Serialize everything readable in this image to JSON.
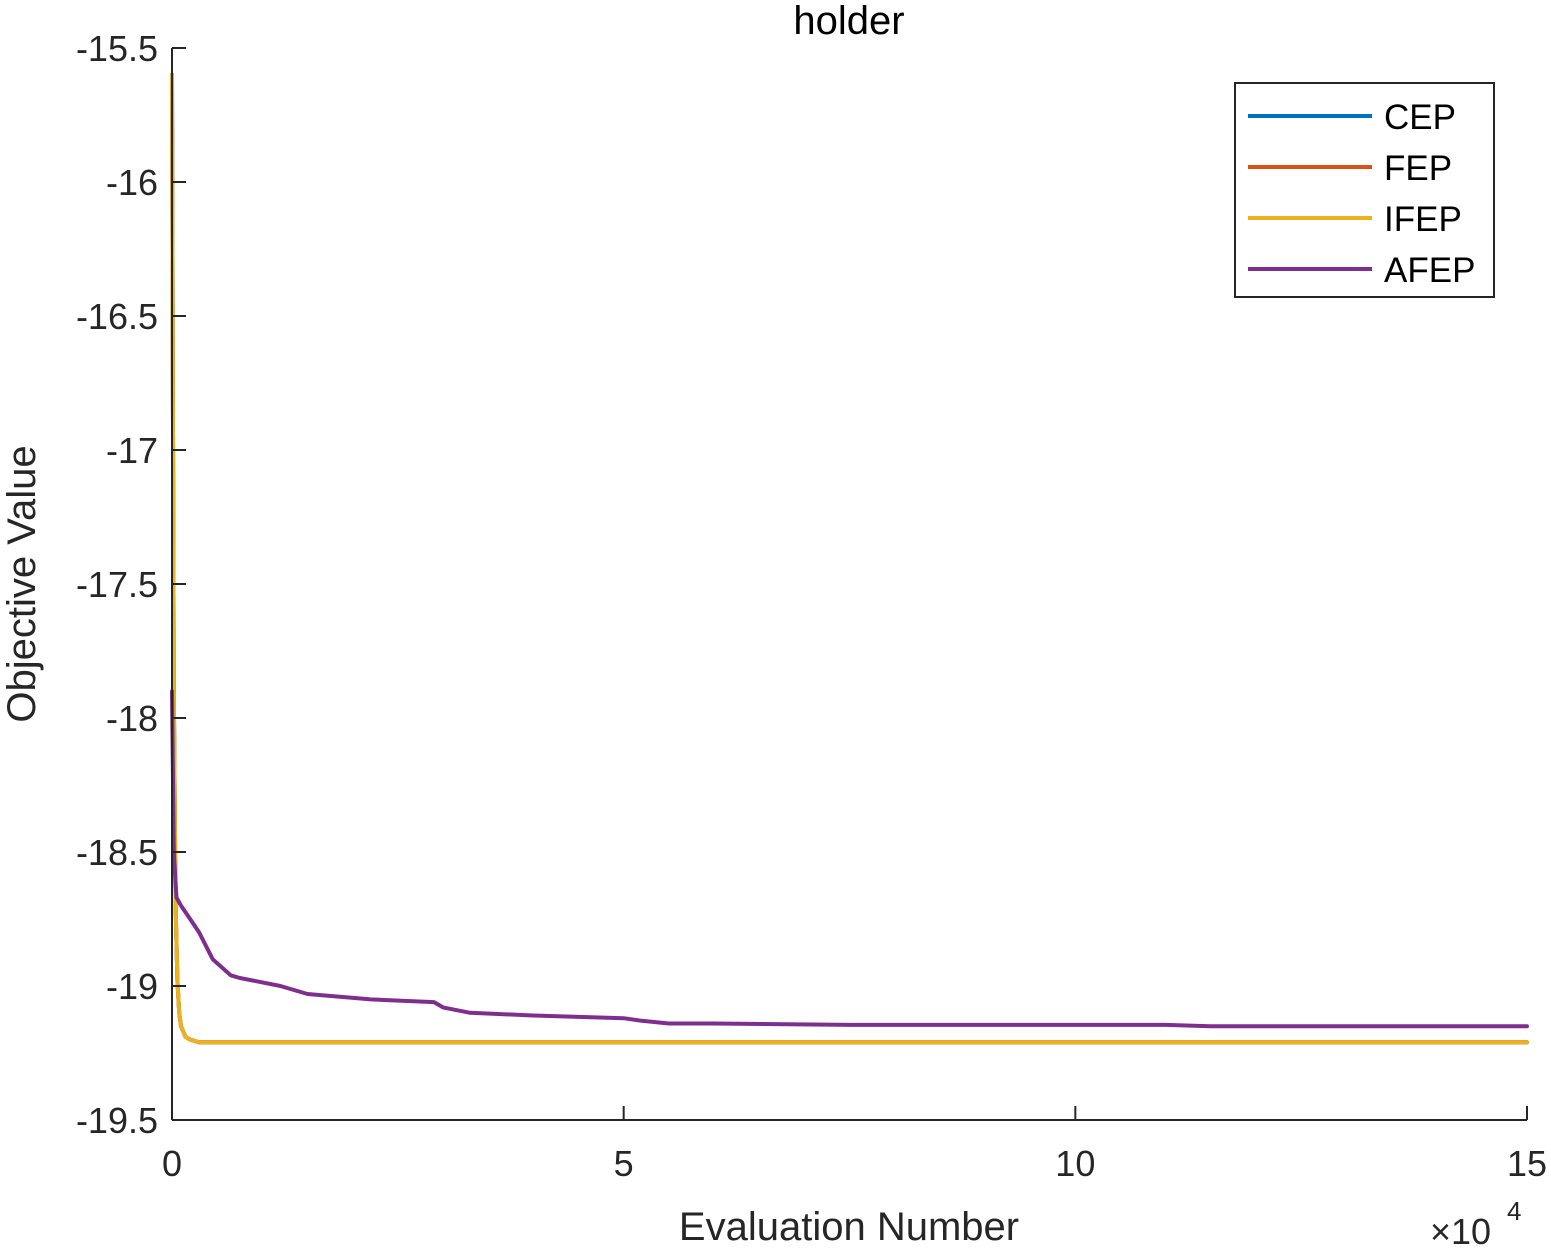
{
  "chart_data": {
    "type": "line",
    "title": "holder",
    "xlabel": "Evaluation Number",
    "ylabel": "Objective Value",
    "x_multiplier_base": "×10",
    "x_multiplier_exp": "4",
    "xlim": [
      0,
      15
    ],
    "ylim": [
      -19.5,
      -15.5
    ],
    "xticks": [
      0,
      5,
      10,
      15
    ],
    "xtick_labels": [
      "0",
      "5",
      "10",
      "15"
    ],
    "yticks": [
      -15.5,
      -16,
      -16.5,
      -17,
      -17.5,
      -18,
      -18.5,
      -19,
      -19.5
    ],
    "ytick_labels": [
      "-15.5",
      "-16",
      "-16.5",
      "-17",
      "-17.5",
      "-18",
      "-18.5",
      "-19",
      "-19.5"
    ],
    "grid": false,
    "legend_position": "top-right",
    "series": [
      {
        "name": "CEP",
        "color": "#0072BD",
        "x": [
          0,
          0.01,
          0.02,
          0.04,
          0.06,
          0.08,
          0.1,
          0.15,
          0.2,
          0.3,
          0.5,
          1,
          2,
          5,
          10,
          15
        ],
        "y": [
          -15.6,
          -16.8,
          -17.9,
          -18.7,
          -18.98,
          -19.1,
          -19.15,
          -19.19,
          -19.2,
          -19.21,
          -19.21,
          -19.21,
          -19.21,
          -19.21,
          -19.21,
          -19.21
        ]
      },
      {
        "name": "FEP",
        "color": "#D95319",
        "x": [
          0,
          0.01,
          0.02,
          0.04,
          0.06,
          0.08,
          0.1,
          0.15,
          0.2,
          0.3,
          0.5,
          1,
          2,
          5,
          10,
          15
        ],
        "y": [
          -15.6,
          -16.8,
          -17.9,
          -18.7,
          -18.98,
          -19.1,
          -19.15,
          -19.19,
          -19.2,
          -19.21,
          -19.21,
          -19.21,
          -19.21,
          -19.21,
          -19.21,
          -19.21
        ]
      },
      {
        "name": "IFEP",
        "color": "#EDB120",
        "x": [
          0,
          0.01,
          0.02,
          0.04,
          0.06,
          0.08,
          0.1,
          0.15,
          0.2,
          0.3,
          0.5,
          1,
          2,
          5,
          10,
          15
        ],
        "y": [
          -15.6,
          -16.8,
          -17.9,
          -18.7,
          -18.98,
          -19.1,
          -19.15,
          -19.19,
          -19.2,
          -19.21,
          -19.21,
          -19.21,
          -19.21,
          -19.21,
          -19.21,
          -19.21
        ]
      },
      {
        "name": "AFEP",
        "color": "#7E2F8E",
        "x": [
          0,
          0.02,
          0.05,
          0.1,
          0.2,
          0.3,
          0.45,
          0.55,
          0.65,
          0.75,
          0.9,
          1.2,
          1.5,
          2.2,
          2.9,
          3.0,
          3.3,
          4.0,
          5.0,
          5.2,
          5.5,
          6.0,
          7.5,
          9.0,
          11.0,
          11.5,
          13.0,
          15.0
        ],
        "y": [
          -17.9,
          -18.5,
          -18.67,
          -18.7,
          -18.75,
          -18.8,
          -18.9,
          -18.93,
          -18.96,
          -18.97,
          -18.98,
          -19.0,
          -19.03,
          -19.05,
          -19.06,
          -19.08,
          -19.1,
          -19.11,
          -19.12,
          -19.13,
          -19.14,
          -19.14,
          -19.145,
          -19.145,
          -19.145,
          -19.15,
          -19.15,
          -19.15
        ]
      }
    ]
  }
}
